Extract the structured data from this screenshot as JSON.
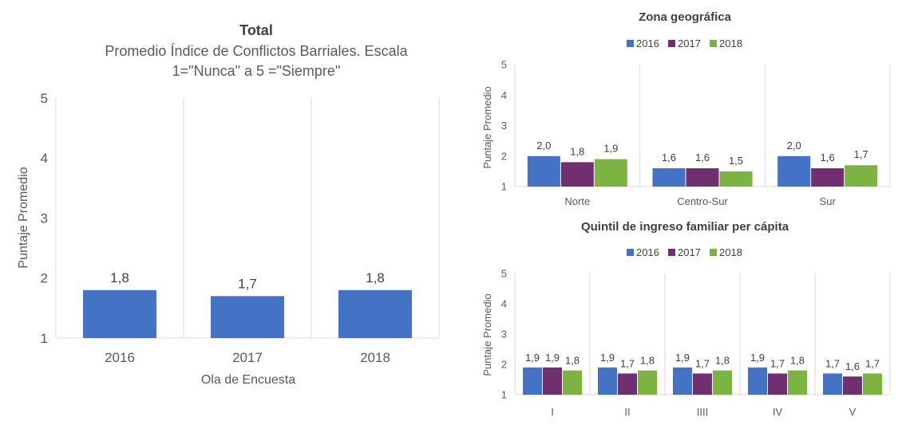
{
  "chart_data": [
    {
      "type": "bar",
      "title": "Total",
      "subtitle_lines": [
        "Promedio Índice de Conflictos Barriales. Escala",
        "1=\"Nunca\" a 5 =\"Siempre\""
      ],
      "xlabel": "Ola de Encuesta",
      "ylabel": "Puntaje Promedio",
      "ylim": [
        1,
        5
      ],
      "yticks": [
        "1",
        "2",
        "3",
        "4",
        "5"
      ],
      "categories": [
        "2016",
        "2017",
        "2018"
      ],
      "values": [
        1.8,
        1.7,
        1.8
      ],
      "value_labels": [
        "1,8",
        "1,7",
        "1,8"
      ],
      "color": "#4472C4",
      "grid": "vertical separators"
    },
    {
      "type": "bar",
      "title": "Zona geográfica",
      "ylabel": "Puntaje Promedio",
      "ylim": [
        1,
        5
      ],
      "yticks": [
        "1",
        "2",
        "3",
        "4",
        "5"
      ],
      "legend": "top",
      "categories": [
        "Norte",
        "Centro-Sur",
        "Sur"
      ],
      "series": [
        {
          "name": "2016",
          "color": "#4472C4",
          "values": [
            2.0,
            1.6,
            2.0
          ],
          "labels": [
            "2,0",
            "1,6",
            "2,0"
          ]
        },
        {
          "name": "2017",
          "color": "#70306F",
          "values": [
            1.8,
            1.6,
            1.6
          ],
          "labels": [
            "1,8",
            "1,6",
            "1,6"
          ]
        },
        {
          "name": "2018",
          "color": "#7CB342",
          "values": [
            1.9,
            1.5,
            1.7
          ],
          "labels": [
            "1,9",
            "1,5",
            "1,7"
          ]
        }
      ]
    },
    {
      "type": "bar",
      "title": "Quintil de ingreso familiar per cápita",
      "ylabel": "Puntaje Promedio",
      "ylim": [
        1,
        5
      ],
      "yticks": [
        "1",
        "2",
        "3",
        "4",
        "5"
      ],
      "legend": "top",
      "categories": [
        "I",
        "II",
        "IIII",
        "IV",
        "V"
      ],
      "series": [
        {
          "name": "2016",
          "color": "#4472C4",
          "values": [
            1.9,
            1.9,
            1.9,
            1.9,
            1.7
          ],
          "labels": [
            "1,9",
            "1,9",
            "1,9",
            "1,9",
            "1,7"
          ]
        },
        {
          "name": "2017",
          "color": "#70306F",
          "values": [
            1.9,
            1.7,
            1.7,
            1.7,
            1.6
          ],
          "labels": [
            "1,9",
            "1,7",
            "1,7",
            "1,7",
            "1,6"
          ]
        },
        {
          "name": "2018",
          "color": "#7CB342",
          "values": [
            1.8,
            1.8,
            1.8,
            1.8,
            1.7
          ],
          "labels": [
            "1,8",
            "1,8",
            "1,8",
            "1,8",
            "1,7"
          ]
        }
      ]
    }
  ]
}
